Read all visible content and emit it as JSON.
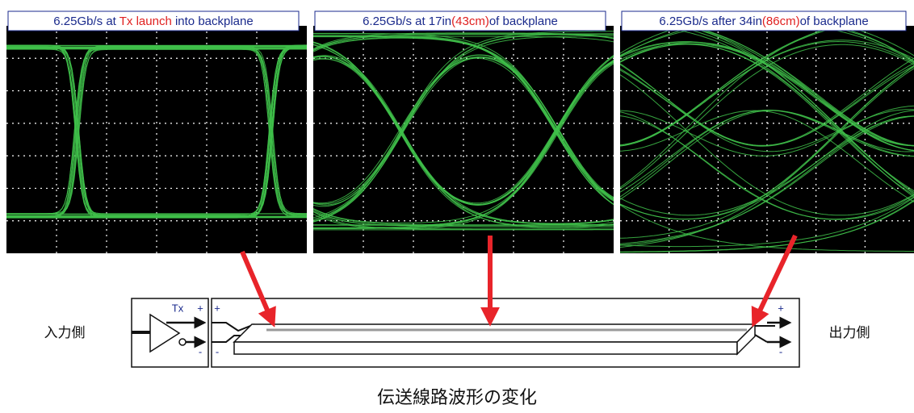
{
  "panels": [
    {
      "title_parts": [
        "6.25Gb/s at ",
        "Tx launch",
        " into backplane"
      ]
    },
    {
      "title_parts": [
        "6.25Gb/s at 17in",
        "(43cm)",
        "of backplane"
      ]
    },
    {
      "title_parts": [
        "6.25Gb/s after 34in",
        "(86cm)",
        "of backplane"
      ]
    }
  ],
  "input_label": "入力側",
  "output_label": "出力側",
  "driver": {
    "label": "Tx",
    "plus": "+",
    "minus": "-"
  },
  "line": {
    "left_plus": "+",
    "left_minus": "-",
    "right_plus": "+",
    "right_minus": "-"
  },
  "caption": "伝送線路波形の変化"
}
